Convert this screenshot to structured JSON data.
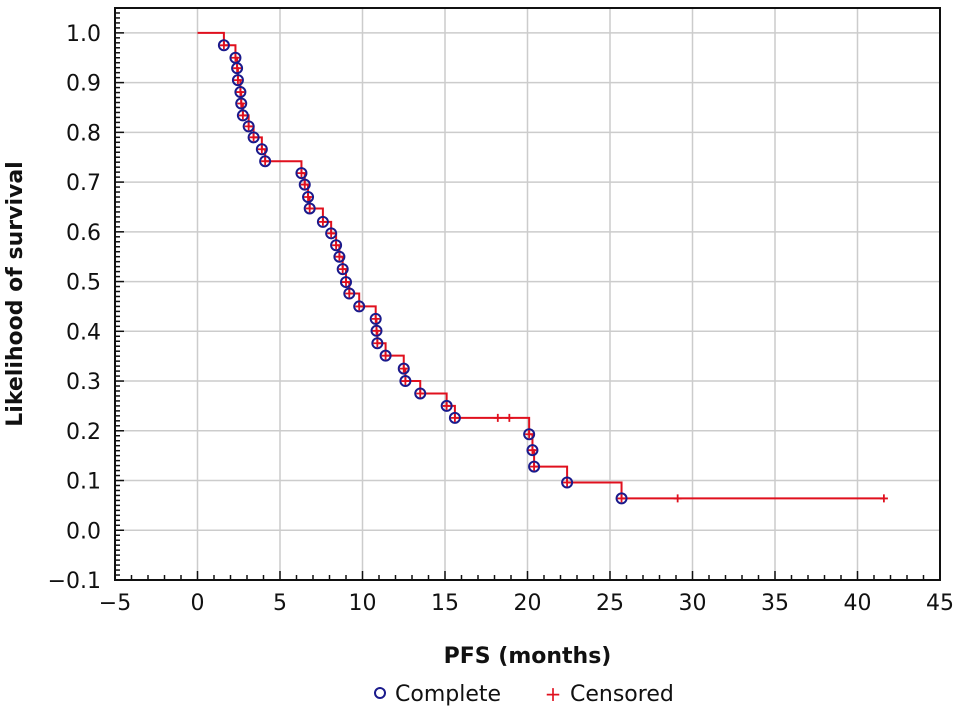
{
  "chart_data": {
    "type": "line",
    "subtype": "kaplan-meier step",
    "xlabel": "PFS (months)",
    "ylabel": "Likelihood of survival",
    "xlim": [
      -5,
      45
    ],
    "ylim": [
      -0.1,
      1.05
    ],
    "xticks": [
      -5,
      0,
      5,
      10,
      15,
      20,
      25,
      30,
      35,
      40,
      45
    ],
    "yticks": [
      -0.1,
      0.0,
      0.1,
      0.2,
      0.3,
      0.4,
      0.5,
      0.6,
      0.7,
      0.8,
      0.9,
      1.0
    ],
    "xtick_labels": [
      "−5",
      "0",
      "5",
      "10",
      "15",
      "20",
      "25",
      "30",
      "35",
      "40",
      "45"
    ],
    "ytick_labels": [
      "−0.1",
      "0.0",
      "0.1",
      "0.2",
      "0.3",
      "0.4",
      "0.5",
      "0.6",
      "0.7",
      "0.8",
      "0.9",
      "1.0"
    ],
    "grid": true,
    "legend_position": "bottom",
    "step": {
      "x": [
        0,
        1.6,
        2.3,
        2.4,
        2.45,
        2.6,
        2.65,
        2.75,
        3.1,
        3.4,
        3.9,
        4.1,
        6.3,
        6.5,
        6.7,
        6.8,
        7.6,
        8.1,
        8.4,
        8.6,
        8.8,
        9.0,
        9.2,
        9.8,
        10.8,
        10.85,
        10.9,
        11.4,
        12.5,
        12.6,
        13.5,
        15.1,
        15.6,
        18.2,
        18.9,
        20.1,
        20.3,
        20.4,
        22.4,
        25.7,
        29.1,
        41.6
      ],
      "y": [
        1.0,
        0.975,
        0.95,
        0.929,
        0.905,
        0.881,
        0.858,
        0.834,
        0.812,
        0.79,
        0.766,
        0.742,
        0.718,
        0.695,
        0.67,
        0.647,
        0.62,
        0.597,
        0.573,
        0.55,
        0.525,
        0.499,
        0.476,
        0.45,
        0.425,
        0.401,
        0.376,
        0.351,
        0.325,
        0.3,
        0.275,
        0.25,
        0.226,
        0.226,
        0.226,
        0.193,
        0.161,
        0.128,
        0.096,
        0.064,
        0.064,
        0.064
      ]
    },
    "series": [
      {
        "name": "Complete",
        "marker": "circle",
        "color": "#1a1a8c",
        "x": [
          1.6,
          2.3,
          2.4,
          2.45,
          2.6,
          2.65,
          2.75,
          3.1,
          3.4,
          3.9,
          4.1,
          6.3,
          6.5,
          6.7,
          6.8,
          7.6,
          8.1,
          8.4,
          8.6,
          8.8,
          9.0,
          9.2,
          9.8,
          10.8,
          10.85,
          10.9,
          11.4,
          12.5,
          12.6,
          13.5,
          15.1,
          15.6,
          20.1,
          20.3,
          20.4,
          22.4,
          25.7
        ],
        "y": [
          0.975,
          0.95,
          0.929,
          0.905,
          0.881,
          0.858,
          0.834,
          0.812,
          0.79,
          0.766,
          0.742,
          0.718,
          0.695,
          0.67,
          0.647,
          0.62,
          0.597,
          0.573,
          0.55,
          0.525,
          0.499,
          0.476,
          0.45,
          0.425,
          0.401,
          0.376,
          0.351,
          0.325,
          0.3,
          0.275,
          0.25,
          0.226,
          0.193,
          0.161,
          0.128,
          0.096,
          0.064
        ]
      },
      {
        "name": "Censored",
        "marker": "plus",
        "color": "#e0101e",
        "x": [
          1.6,
          2.3,
          2.4,
          2.45,
          2.6,
          2.65,
          2.75,
          3.1,
          3.4,
          3.9,
          4.1,
          6.3,
          6.5,
          6.7,
          6.8,
          7.6,
          8.1,
          8.4,
          8.6,
          8.8,
          9.0,
          9.2,
          9.8,
          10.8,
          10.85,
          10.9,
          11.4,
          12.5,
          12.6,
          13.5,
          15.1,
          15.6,
          18.2,
          18.9,
          20.1,
          20.3,
          20.4,
          22.4,
          25.7,
          29.1,
          41.6
        ],
        "y": [
          0.975,
          0.95,
          0.929,
          0.905,
          0.881,
          0.858,
          0.834,
          0.812,
          0.79,
          0.766,
          0.742,
          0.718,
          0.695,
          0.67,
          0.647,
          0.62,
          0.597,
          0.573,
          0.55,
          0.525,
          0.499,
          0.476,
          0.45,
          0.425,
          0.401,
          0.376,
          0.351,
          0.325,
          0.3,
          0.275,
          0.25,
          0.226,
          0.226,
          0.226,
          0.193,
          0.161,
          0.128,
          0.096,
          0.064,
          0.064,
          0.064
        ]
      }
    ],
    "colors": {
      "line": "#e0101e",
      "circle": "#1a1a8c",
      "plus": "#e0101e",
      "grid": "#cccccc",
      "axis": "#111111"
    }
  },
  "legend": {
    "complete_label": "Complete",
    "censored_label": "Censored",
    "censored_symbol": "+"
  }
}
